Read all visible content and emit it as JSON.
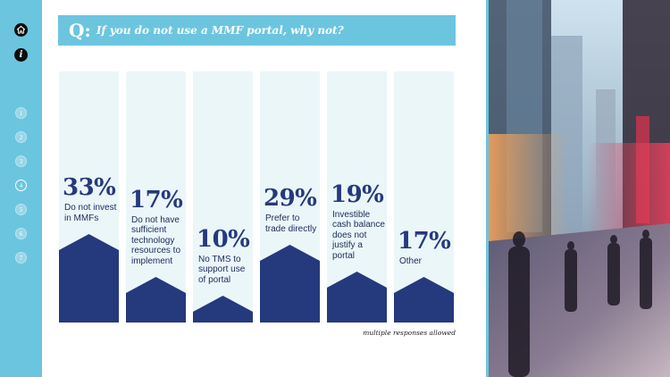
{
  "header": {
    "q_label": "Q:",
    "title": "If you do not use a MMF portal, why not?"
  },
  "nav": {
    "dots": [
      "1",
      "2",
      "3",
      "4",
      "5",
      "6",
      "7"
    ],
    "active_index": 3,
    "home_icon": "home-icon",
    "info_icon": "info-icon",
    "info_label": "i"
  },
  "colors": {
    "rail": "#6cc5df",
    "column_bg": "#ebf6f9",
    "bar": "#25397d"
  },
  "chart_data": {
    "type": "bar",
    "categories": [
      "Do not invest in MMFs",
      "Do not have sufficient technology resources to implement",
      "No TMS to support use of portal",
      "Prefer to trade directly",
      "Investible cash balance does not justify a portal",
      "Other"
    ],
    "category_lines": [
      [
        "Do not invest",
        "in MMFs"
      ],
      [
        "Do not have",
        "sufficient",
        "technology",
        "resources to",
        "implement"
      ],
      [
        "No TMS to",
        "support use",
        "of portal"
      ],
      [
        "Prefer to",
        "trade directly"
      ],
      [
        "Investible",
        "cash balance",
        "does not",
        "justify a",
        "portal"
      ],
      [
        "Other"
      ]
    ],
    "values": [
      33,
      17,
      10,
      29,
      19,
      17
    ],
    "value_labels": [
      "33%",
      "17%",
      "10%",
      "29%",
      "19%",
      "17%"
    ],
    "ylim": [
      0,
      100
    ],
    "legend": "none",
    "grid": false
  },
  "footnote": "multiple responses allowed"
}
